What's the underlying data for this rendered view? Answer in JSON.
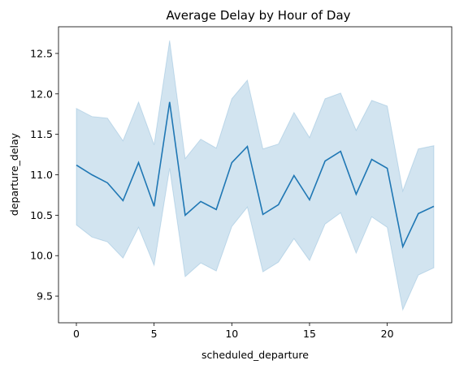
{
  "chart_data": {
    "type": "line",
    "title": "Average Delay by Hour of Day",
    "xlabel": "scheduled_departure",
    "ylabel": "departure_delay",
    "xlim": [
      -1.15,
      24.15
    ],
    "ylim": [
      9.17,
      12.83
    ],
    "xticks": [
      0,
      5,
      10,
      15,
      20
    ],
    "xtick_labels": [
      "0",
      "5",
      "10",
      "15",
      "20"
    ],
    "yticks": [
      9.5,
      10.0,
      10.5,
      11.0,
      11.5,
      12.0,
      12.5
    ],
    "ytick_labels": [
      "9.5",
      "10.0",
      "10.5",
      "11.0",
      "11.5",
      "12.0",
      "12.5"
    ],
    "grid": false,
    "colors": {
      "line": "#1f77b4",
      "band": "#1f77b4"
    },
    "series": [
      {
        "x": [
          0,
          1,
          2,
          3,
          4,
          5,
          6,
          7,
          8,
          9,
          10,
          11,
          12,
          13,
          14,
          15,
          16,
          17,
          18,
          19,
          20,
          21,
          22,
          23
        ],
        "values": [
          11.12,
          11.0,
          10.9,
          10.68,
          11.15,
          10.61,
          11.9,
          10.5,
          10.67,
          10.57,
          11.15,
          11.35,
          10.51,
          10.63,
          10.99,
          10.69,
          11.17,
          11.29,
          10.76,
          11.19,
          11.08,
          10.11,
          10.52,
          10.61
        ],
        "ci_upper": [
          11.82,
          11.72,
          11.7,
          11.42,
          11.9,
          11.37,
          12.66,
          11.2,
          11.44,
          11.33,
          11.94,
          12.17,
          11.32,
          11.38,
          11.77,
          11.46,
          11.94,
          12.01,
          11.55,
          11.92,
          11.85,
          10.8,
          11.32,
          11.36
        ],
        "ci_lower": [
          10.38,
          10.23,
          10.17,
          9.97,
          10.35,
          9.88,
          11.08,
          9.74,
          9.91,
          9.81,
          10.36,
          10.6,
          9.8,
          9.92,
          10.21,
          9.94,
          10.39,
          10.53,
          10.03,
          10.48,
          10.35,
          9.33,
          9.76,
          9.85
        ]
      }
    ]
  }
}
